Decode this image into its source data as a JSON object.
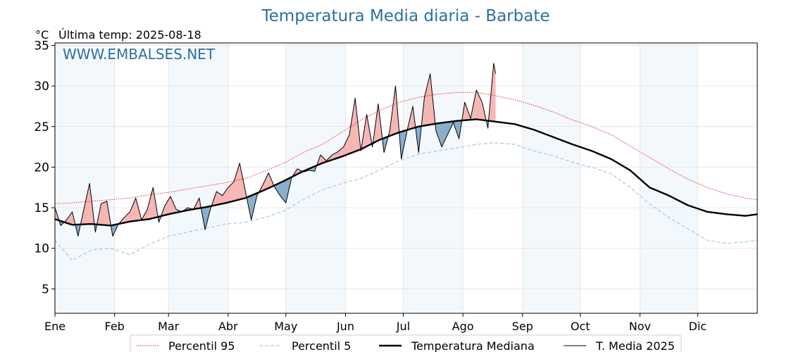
{
  "chart_data": {
    "type": "line",
    "title": "Temperatura Media diaria - Barbate",
    "unit_label": "°C",
    "last_temp_label": "Última temp: 2025-08-18",
    "watermark": "WWW.EMBALSES.NET",
    "ylim": [
      2,
      35.3
    ],
    "xlim": [
      1,
      366
    ],
    "grid": true,
    "yticks": [
      5,
      10,
      15,
      20,
      25,
      30,
      35
    ],
    "xticks": [
      {
        "label": "Ene",
        "day": 1
      },
      {
        "label": "Feb",
        "day": 32
      },
      {
        "label": "Mar",
        "day": 60
      },
      {
        "label": "Abr",
        "day": 91
      },
      {
        "label": "May",
        "day": 121
      },
      {
        "label": "Jun",
        "day": 152
      },
      {
        "label": "Jul",
        "day": 182
      },
      {
        "label": "Ago",
        "day": 213
      },
      {
        "label": "Sep",
        "day": 244
      },
      {
        "label": "Oct",
        "day": 274
      },
      {
        "label": "Nov",
        "day": 305
      },
      {
        "label": "Dic",
        "day": 335
      }
    ],
    "shaded_bands": [
      [
        1,
        32
      ],
      [
        60,
        91
      ],
      [
        121,
        152
      ],
      [
        182,
        213
      ],
      [
        244,
        274
      ],
      [
        305,
        335
      ]
    ],
    "legend_position": "bottom-center",
    "series": [
      {
        "name": "Percentil 95",
        "color": "#e8231b",
        "style": "dotted",
        "x": [
          1,
          10,
          20,
          30,
          40,
          50,
          60,
          70,
          80,
          90,
          100,
          110,
          120,
          130,
          140,
          150,
          160,
          170,
          180,
          190,
          200,
          210,
          220,
          230,
          240,
          250,
          260,
          270,
          280,
          290,
          300,
          310,
          320,
          330,
          340,
          350,
          360,
          366
        ],
        "y": [
          15.5,
          15.6,
          15.8,
          16.0,
          16.2,
          16.6,
          16.9,
          17.3,
          17.7,
          18.1,
          18.6,
          19.5,
          20.5,
          21.8,
          22.8,
          24.3,
          25.8,
          27.0,
          28.0,
          28.6,
          29.0,
          29.2,
          29.2,
          28.8,
          28.3,
          27.6,
          26.8,
          25.8,
          25.0,
          24.0,
          22.6,
          21.2,
          19.8,
          18.5,
          17.5,
          16.7,
          16.2,
          16.0
        ]
      },
      {
        "name": "Percentil 5",
        "color": "#9fcde0",
        "style": "dashed",
        "x": [
          1,
          10,
          20,
          30,
          40,
          50,
          60,
          70,
          80,
          90,
          100,
          110,
          120,
          130,
          140,
          150,
          160,
          170,
          180,
          190,
          200,
          210,
          220,
          230,
          240,
          250,
          260,
          270,
          280,
          290,
          300,
          310,
          320,
          330,
          340,
          350,
          360,
          366
        ],
        "y": [
          11.0,
          8.5,
          9.8,
          10.0,
          9.2,
          10.5,
          11.5,
          12.0,
          12.5,
          13.0,
          13.2,
          13.8,
          14.6,
          16.0,
          17.2,
          18.0,
          18.6,
          19.7,
          20.8,
          21.6,
          22.0,
          22.4,
          22.8,
          23.0,
          22.8,
          22.0,
          21.4,
          20.6,
          20.0,
          19.2,
          17.5,
          15.5,
          13.8,
          12.4,
          11.0,
          10.6,
          10.8,
          11.0
        ]
      },
      {
        "name": "Temperatura Mediana",
        "color": "#000000",
        "style": "thick",
        "x": [
          1,
          10,
          20,
          30,
          40,
          50,
          60,
          70,
          80,
          90,
          100,
          110,
          120,
          130,
          140,
          150,
          160,
          170,
          180,
          190,
          200,
          210,
          220,
          230,
          240,
          250,
          260,
          270,
          280,
          290,
          300,
          310,
          320,
          330,
          340,
          350,
          360,
          366
        ],
        "y": [
          13.6,
          12.9,
          13.0,
          12.8,
          13.3,
          13.6,
          14.2,
          14.7,
          15.1,
          15.6,
          16.2,
          17.2,
          18.3,
          19.5,
          20.5,
          21.3,
          22.2,
          23.4,
          24.3,
          25.0,
          25.4,
          25.7,
          25.9,
          25.6,
          25.3,
          24.6,
          23.7,
          22.8,
          22.0,
          21.0,
          19.6,
          17.5,
          16.5,
          15.3,
          14.5,
          14.2,
          14.0,
          14.2
        ]
      },
      {
        "name": "T. Media 2025",
        "color": "#000000",
        "style": "thin",
        "x": [
          1,
          4,
          7,
          10,
          13,
          16,
          19,
          22,
          25,
          28,
          31,
          34,
          37,
          40,
          43,
          46,
          49,
          52,
          55,
          58,
          61,
          64,
          67,
          70,
          73,
          76,
          79,
          82,
          85,
          88,
          91,
          94,
          97,
          100,
          103,
          106,
          109,
          112,
          115,
          118,
          121,
          124,
          127,
          130,
          133,
          136,
          139,
          142,
          145,
          148,
          151,
          154,
          157,
          160,
          163,
          166,
          169,
          172,
          175,
          178,
          181,
          184,
          187,
          190,
          193,
          196,
          199,
          202,
          205,
          208,
          211,
          214,
          217,
          220,
          223,
          226,
          229,
          230
        ],
        "y": [
          15.0,
          12.8,
          13.5,
          14.5,
          11.5,
          14.8,
          18.0,
          12.0,
          15.5,
          15.8,
          11.5,
          13.0,
          13.8,
          14.5,
          16.2,
          13.5,
          14.8,
          17.5,
          13.2,
          15.2,
          16.4,
          14.8,
          14.5,
          15.0,
          14.8,
          16.2,
          12.3,
          15.0,
          17.0,
          16.5,
          17.5,
          18.2,
          20.5,
          17.0,
          13.5,
          16.5,
          17.8,
          19.3,
          17.6,
          16.5,
          15.6,
          18.7,
          19.8,
          19.4,
          19.6,
          19.5,
          21.5,
          20.8,
          21.5,
          21.9,
          22.5,
          24.0,
          28.5,
          22.0,
          26.5,
          22.5,
          27.8,
          21.8,
          24.5,
          30.0,
          21.0,
          24.5,
          27.5,
          21.8,
          28.6,
          31.5,
          24.5,
          22.5,
          24.0,
          25.5,
          23.5,
          28.0,
          26.0,
          29.5,
          28.0,
          24.8,
          32.8,
          31.5
        ]
      }
    ]
  }
}
